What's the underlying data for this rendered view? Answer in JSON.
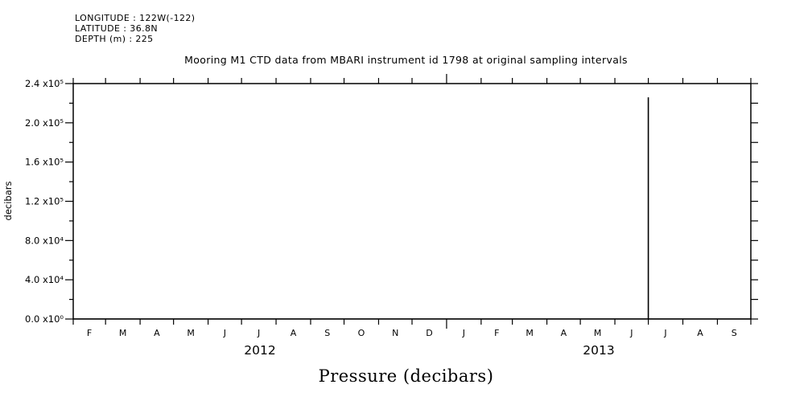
{
  "station": {
    "longitude": "LONGITUDE : 122W(-122)",
    "latitude": "LATITUDE : 36.8N",
    "depth": "DEPTH (m) : 225"
  },
  "chart_data": {
    "type": "line",
    "title": "Mooring M1 CTD data from MBARI instrument id 1798 at original sampling intervals",
    "ylabel": "decibars",
    "xlabel": "Pressure (decibars)",
    "ylim": [
      0,
      240000
    ],
    "ytick_major_step": 40000,
    "ytick_minor_step": 20000,
    "ytick_labels": [
      "0.0 x10⁰",
      "4.0 x10⁴",
      "8.0 x10⁴",
      "1.2 x10⁵",
      "1.6 x10⁵",
      "2.0 x10⁵",
      "2.4 x10⁵"
    ],
    "x_range": [
      "2012-02-01",
      "2013-10-01"
    ],
    "month_labels": [
      "F",
      "M",
      "A",
      "M",
      "J",
      "J",
      "A",
      "S",
      "O",
      "N",
      "D",
      "J",
      "F",
      "M",
      "A",
      "M",
      "J",
      "J",
      "A",
      "S"
    ],
    "years": [
      {
        "label": "2012",
        "from": "2012-02-01",
        "to": "2013-01-01"
      },
      {
        "label": "2013",
        "from": "2013-01-01",
        "to": "2013-10-01"
      }
    ],
    "grid": false,
    "frame": true,
    "line_color": "#000000",
    "series": [
      {
        "name": "pressure",
        "baseline_value": 225,
        "spike": {
          "date": "2013-07-01",
          "peak_value": 226000
        }
      }
    ]
  }
}
